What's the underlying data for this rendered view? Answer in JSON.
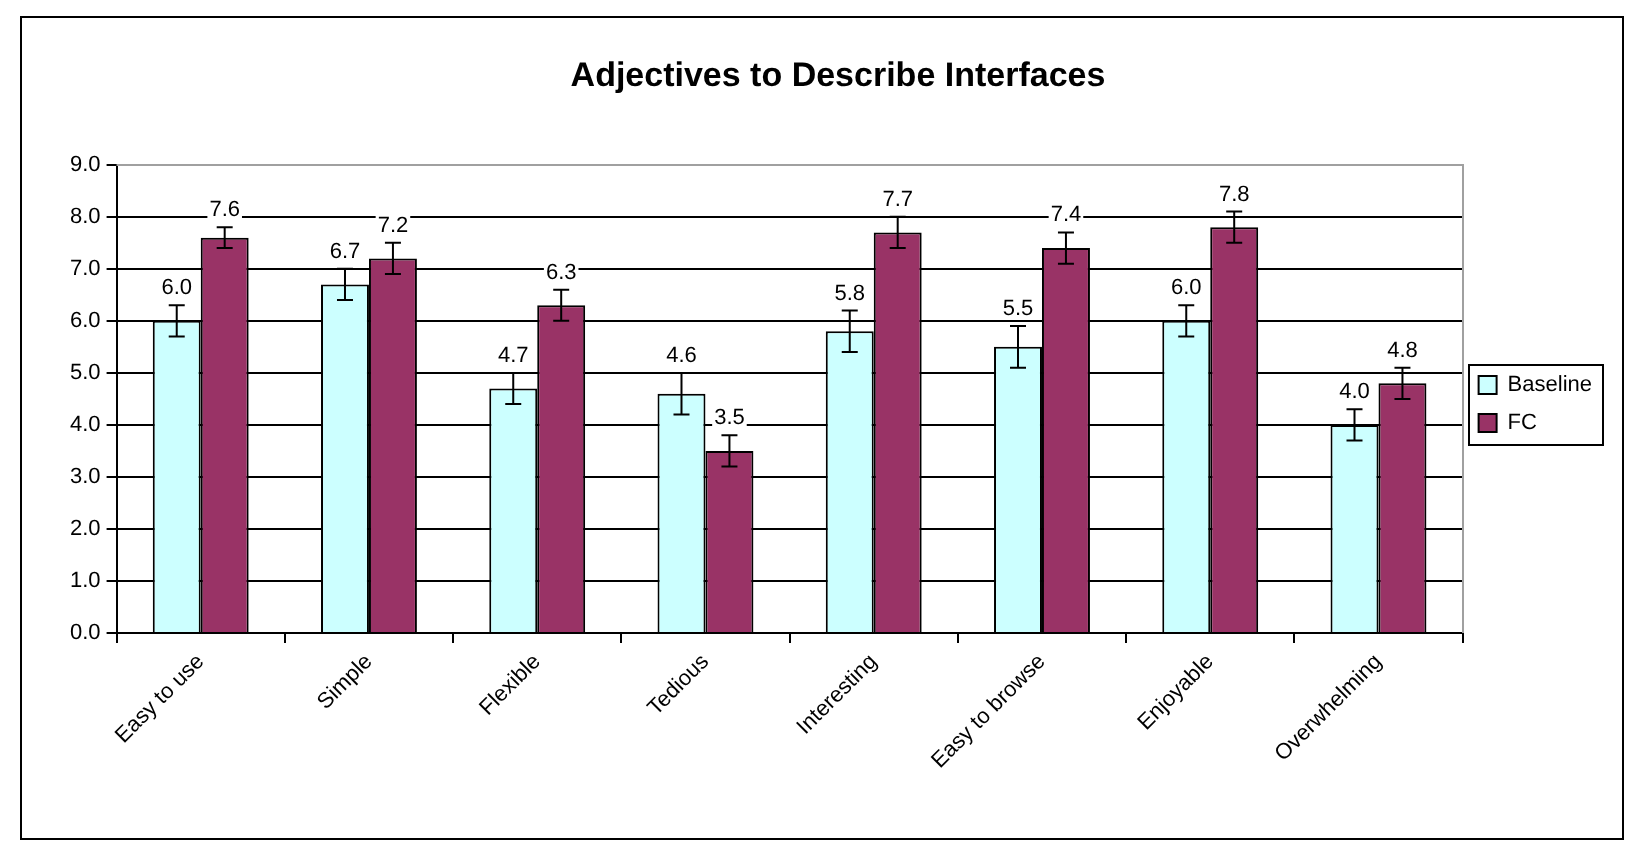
{
  "chart_data": {
    "type": "bar",
    "title": "Adjectives to Describe Interfaces",
    "categories": [
      "Easy to use",
      "Simple",
      "Flexible",
      "Tedious",
      "Interesting",
      "Easy to browse",
      "Enjoyable",
      "Overwhelming"
    ],
    "series": [
      {
        "name": "Baseline",
        "color": "#ccffff",
        "values": [
          6.0,
          6.7,
          4.7,
          4.6,
          5.8,
          5.5,
          6.0,
          4.0
        ],
        "errors": [
          0.3,
          0.3,
          0.3,
          0.4,
          0.4,
          0.4,
          0.3,
          0.3
        ],
        "value_labels": [
          "6.0",
          "6.7",
          "4.7",
          "4.6",
          "5.8",
          "5.5",
          "6.0",
          "4.0"
        ]
      },
      {
        "name": "FC",
        "color": "#993366",
        "values": [
          7.6,
          7.2,
          6.3,
          3.5,
          7.7,
          7.4,
          7.8,
          4.8
        ],
        "errors": [
          0.2,
          0.3,
          0.3,
          0.3,
          0.3,
          0.3,
          0.3,
          0.3
        ],
        "value_labels": [
          "7.6",
          "7.2",
          "6.3",
          "3.5",
          "7.7",
          "7.4",
          "7.8",
          "4.8"
        ]
      }
    ],
    "ylim": [
      0,
      9
    ],
    "yticks": [
      {
        "value": 0,
        "label": "0.0"
      },
      {
        "value": 1,
        "label": "1.0"
      },
      {
        "value": 2,
        "label": "2.0"
      },
      {
        "value": 3,
        "label": "3.0"
      },
      {
        "value": 4,
        "label": "4.0"
      },
      {
        "value": 5,
        "label": "5.0"
      },
      {
        "value": 6,
        "label": "6.0"
      },
      {
        "value": 7,
        "label": "7.0"
      },
      {
        "value": 8,
        "label": "8.0"
      },
      {
        "value": 9,
        "label": "9.0"
      }
    ],
    "grid": "y",
    "legend": "right"
  }
}
